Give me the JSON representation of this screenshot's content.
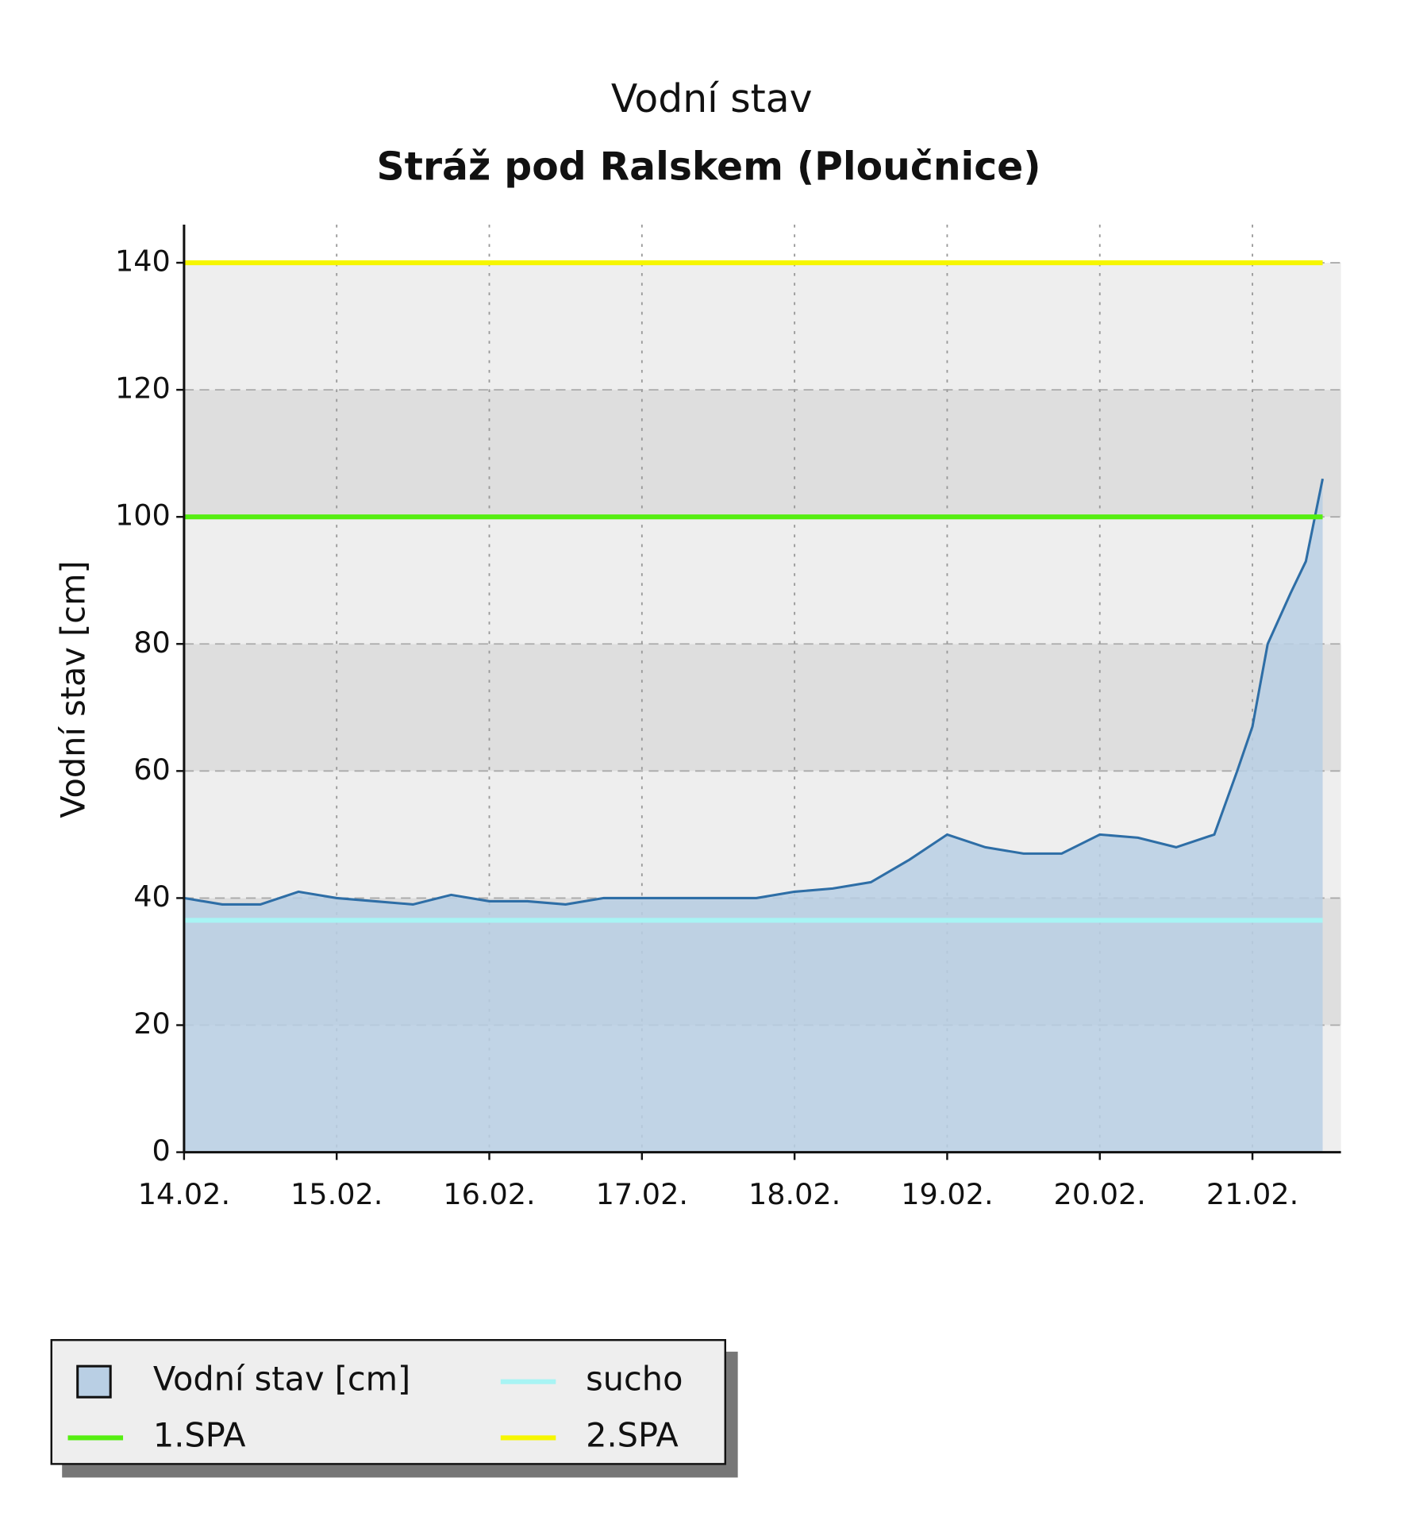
{
  "chart_data": {
    "type": "area",
    "title": "Vodní stav",
    "subtitle": "Stráž pod Ralskem (Ploučnice)",
    "y_label": "Vodní stav [cm]",
    "x": [
      0,
      0.25,
      0.5,
      0.75,
      1.0,
      1.25,
      1.5,
      1.75,
      2.0,
      2.25,
      2.5,
      2.75,
      3.0,
      3.25,
      3.5,
      3.75,
      4.0,
      4.25,
      4.5,
      4.75,
      5.0,
      5.25,
      5.5,
      5.75,
      6.0,
      6.25,
      6.5,
      6.75,
      6.9,
      7.0,
      7.1,
      7.25,
      7.35,
      7.46
    ],
    "series": [
      {
        "name": "Vodní stav [cm]",
        "color": "#2e6ea6",
        "fill": "#b9cfe4",
        "values": [
          40,
          39,
          39,
          41,
          40,
          39.5,
          39,
          40.5,
          39.5,
          39.5,
          39,
          40,
          40,
          40,
          40,
          40,
          41,
          41.5,
          42.5,
          46,
          50,
          48,
          47,
          47,
          50,
          49.5,
          48,
          50,
          60,
          67,
          80,
          88,
          93,
          106
        ]
      }
    ],
    "reference_lines": [
      {
        "name": "sucho",
        "color": "#a8f4f4",
        "value": 36.5
      },
      {
        "name": "1.SPA",
        "color": "#55ee11",
        "value": 100
      },
      {
        "name": "2.SPA",
        "color": "#f6f600",
        "value": 140
      }
    ],
    "xlim": [
      0,
      7.58
    ],
    "xticks": [
      {
        "value": 0,
        "label": "14.02."
      },
      {
        "value": 1,
        "label": "15.02."
      },
      {
        "value": 2,
        "label": "16.02."
      },
      {
        "value": 3,
        "label": "17.02."
      },
      {
        "value": 4,
        "label": "18.02."
      },
      {
        "value": 5,
        "label": "19.02."
      },
      {
        "value": 6,
        "label": "20.02."
      },
      {
        "value": 7,
        "label": "21.02."
      }
    ],
    "ylim": [
      0,
      146
    ],
    "yticks": [
      0,
      20,
      40,
      60,
      80,
      100,
      120,
      140
    ],
    "grid": true
  }
}
